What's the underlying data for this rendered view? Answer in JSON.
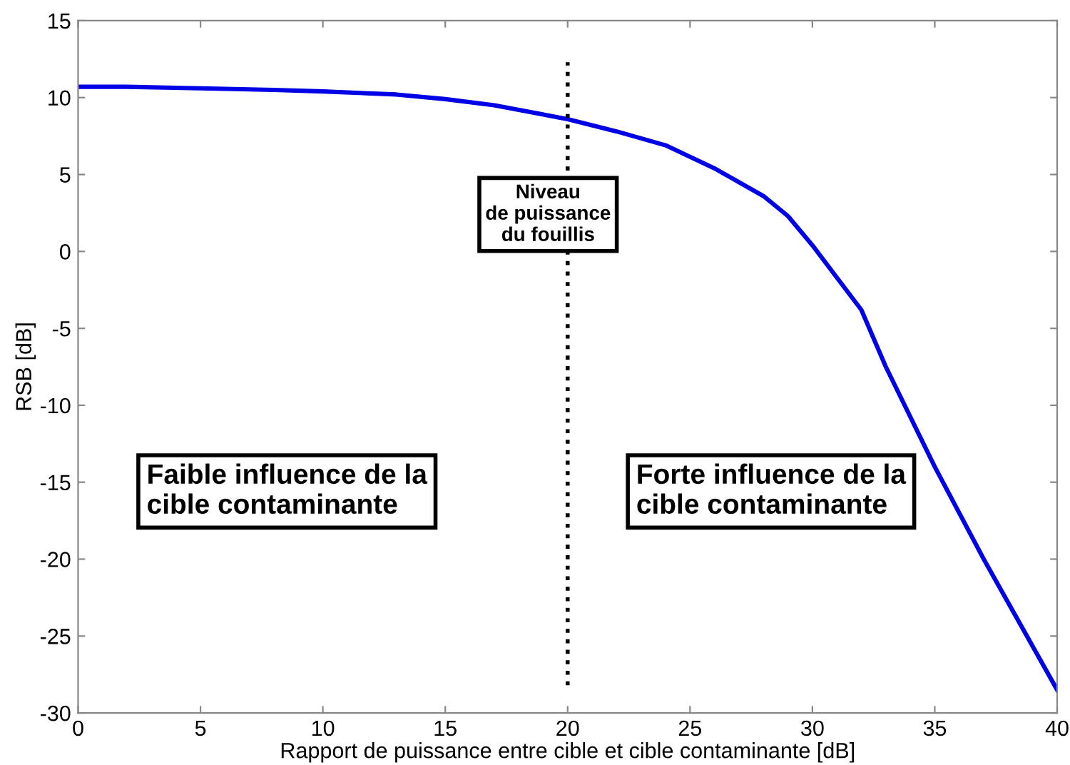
{
  "chart_data": {
    "type": "line",
    "xlabel": "Rapport de puissance entre cible et cible contaminante [dB]",
    "ylabel": "RSB [dB]",
    "x": [
      0,
      2,
      5,
      8,
      10,
      13,
      15,
      17,
      20,
      22,
      24,
      26,
      28,
      29,
      30,
      31,
      32,
      33,
      35,
      37,
      40
    ],
    "series": [
      {
        "color": "#0000e6",
        "values": [
          10.7,
          10.7,
          10.6,
          10.5,
          10.4,
          10.2,
          9.9,
          9.5,
          8.6,
          7.8,
          6.9,
          5.4,
          3.6,
          2.3,
          0.4,
          -1.7,
          -3.8,
          -7.5,
          -14,
          -20,
          -28.5
        ]
      }
    ],
    "xlim": [
      0,
      40
    ],
    "ylim": [
      -30,
      15
    ],
    "xticks": [
      0,
      5,
      10,
      15,
      20,
      25,
      30,
      35,
      40
    ],
    "yticks": [
      -30,
      -25,
      -20,
      -15,
      -10,
      -5,
      0,
      5,
      10,
      15
    ],
    "ref_lines": [
      {
        "axis": "x",
        "value": 20,
        "color": "#000000",
        "line_style": "dotted"
      }
    ],
    "annotations": [
      "Niveau\nde puissance\ndu fouillis",
      "Faible influence de la\ncible contaminante",
      "Forte influence de la\ncible contaminante"
    ],
    "grid": false,
    "legend": false,
    "marker": "none",
    "line_style": "solid"
  }
}
